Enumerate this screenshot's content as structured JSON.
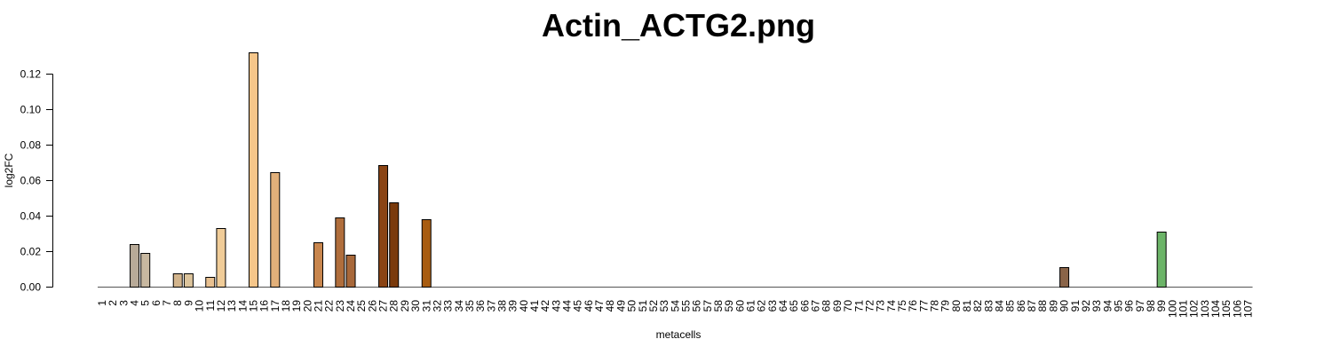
{
  "chart_data": {
    "type": "bar",
    "title": "Actin_ACTG2.png",
    "xlabel": "metacells",
    "ylabel": "log2FC",
    "ylim": [
      0,
      0.132
    ],
    "yticks": [
      "0.00",
      "0.02",
      "0.04",
      "0.06",
      "0.08",
      "0.10",
      "0.12"
    ],
    "categories": [
      "1",
      "2",
      "3",
      "4",
      "5",
      "6",
      "7",
      "8",
      "9",
      "10",
      "11",
      "12",
      "13",
      "14",
      "15",
      "16",
      "17",
      "18",
      "19",
      "20",
      "21",
      "22",
      "23",
      "24",
      "25",
      "26",
      "27",
      "28",
      "29",
      "30",
      "31",
      "32",
      "33",
      "34",
      "35",
      "36",
      "37",
      "38",
      "39",
      "40",
      "41",
      "42",
      "43",
      "44",
      "45",
      "46",
      "47",
      "48",
      "49",
      "50",
      "51",
      "52",
      "53",
      "54",
      "55",
      "56",
      "57",
      "58",
      "59",
      "60",
      "61",
      "62",
      "63",
      "64",
      "65",
      "66",
      "67",
      "68",
      "69",
      "70",
      "71",
      "72",
      "73",
      "74",
      "75",
      "76",
      "77",
      "78",
      "79",
      "80",
      "81",
      "82",
      "83",
      "84",
      "85",
      "86",
      "87",
      "88",
      "89",
      "90",
      "91",
      "92",
      "93",
      "94",
      "95",
      "96",
      "97",
      "98",
      "99",
      "100",
      "101",
      "102",
      "103",
      "104",
      "105",
      "106",
      "107"
    ],
    "bars": [
      {
        "category": "4",
        "value": 0.024,
        "color": "#b8aa98"
      },
      {
        "category": "5",
        "value": 0.019,
        "color": "#c8b8a0"
      },
      {
        "category": "8",
        "value": 0.0075,
        "color": "#d2b48c"
      },
      {
        "category": "9",
        "value": 0.0075,
        "color": "#dcc49c"
      },
      {
        "category": "11",
        "value": 0.0055,
        "color": "#e8c090"
      },
      {
        "category": "12",
        "value": 0.033,
        "color": "#f0cc98"
      },
      {
        "category": "15",
        "value": 0.132,
        "color": "#f5c68a"
      },
      {
        "category": "17",
        "value": 0.0645,
        "color": "#e2b07a"
      },
      {
        "category": "21",
        "value": 0.025,
        "color": "#c8864e"
      },
      {
        "category": "23",
        "value": 0.039,
        "color": "#b06e3c"
      },
      {
        "category": "24",
        "value": 0.018,
        "color": "#a8683a"
      },
      {
        "category": "27",
        "value": 0.0685,
        "color": "#8a4414"
      },
      {
        "category": "28",
        "value": 0.0475,
        "color": "#7a3a0c"
      },
      {
        "category": "31",
        "value": 0.038,
        "color": "#a85c10"
      },
      {
        "category": "90",
        "value": 0.011,
        "color": "#8a6448"
      },
      {
        "category": "99",
        "value": 0.031,
        "color": "#6cb468"
      }
    ]
  }
}
